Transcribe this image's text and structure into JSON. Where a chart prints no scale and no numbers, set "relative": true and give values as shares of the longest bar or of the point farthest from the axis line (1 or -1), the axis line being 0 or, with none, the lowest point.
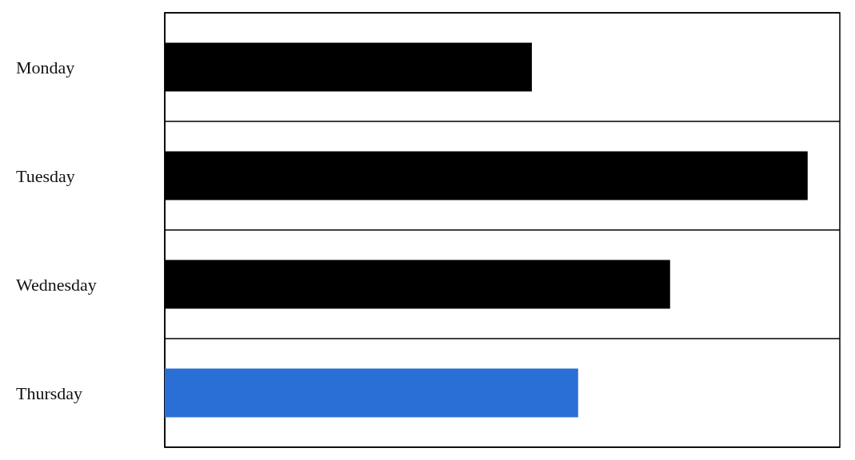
{
  "chart_data": {
    "type": "bar",
    "orientation": "horizontal",
    "relative": true,
    "categories": [
      "Monday",
      "Tuesday",
      "Wednesday",
      "Thursday"
    ],
    "values": [
      0.571,
      1,
      0.786,
      0.643
    ],
    "colors": [
      "#000000",
      "#000000",
      "#000000",
      "#2a6fd6"
    ],
    "grid": "y"
  }
}
